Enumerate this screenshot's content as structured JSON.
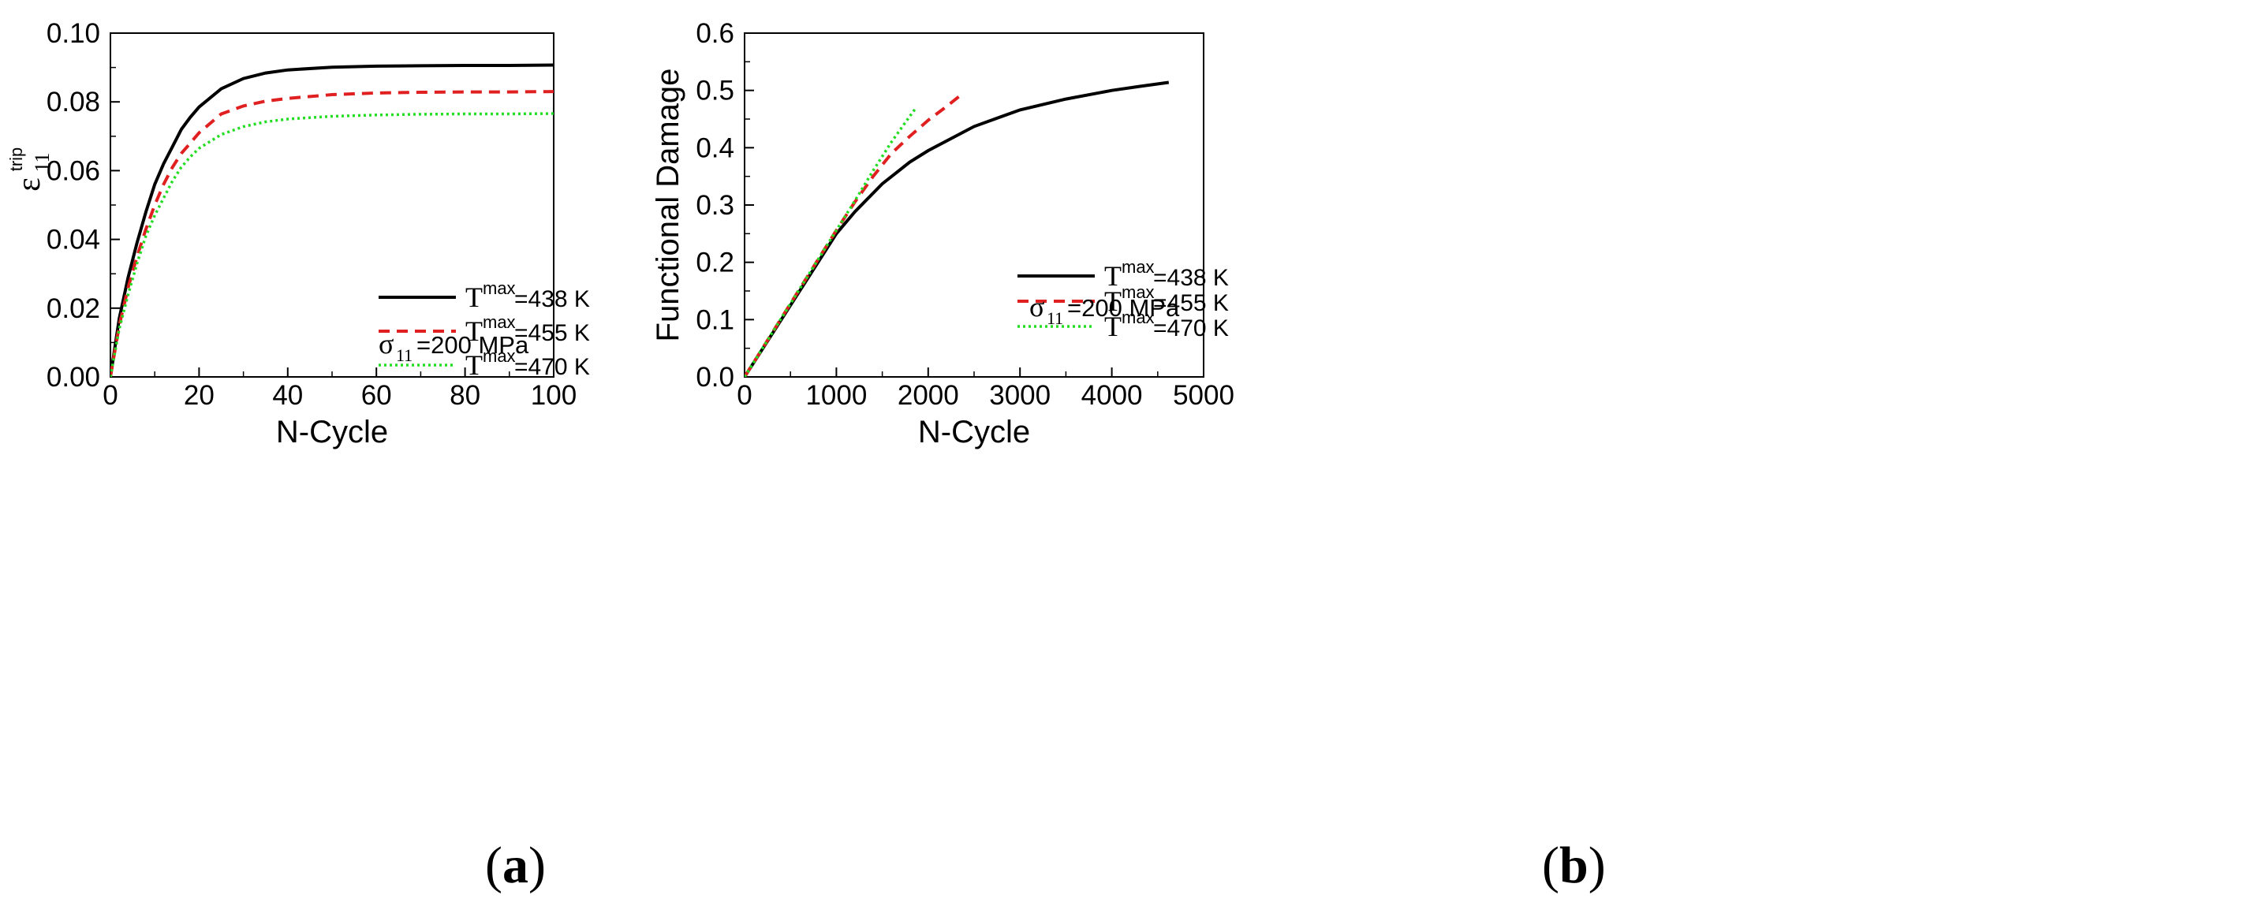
{
  "chart_data": [
    {
      "type": "line",
      "panel": "a",
      "caption_letter": "a",
      "xlabel": "N-Cycle",
      "ylabel_base": "ε",
      "ylabel_sup": "trip",
      "ylabel_sub": "11",
      "xlim": [
        0,
        100
      ],
      "ylim": [
        0,
        0.1
      ],
      "xticks": [
        0,
        20,
        40,
        60,
        80,
        100
      ],
      "xtick_labels": [
        "0",
        "20",
        "40",
        "60",
        "80",
        "100"
      ],
      "yticks": [
        0,
        0.02,
        0.04,
        0.06,
        0.08,
        0.1
      ],
      "ytick_labels": [
        "0.00",
        "0.02",
        "0.04",
        "0.06",
        "0.08",
        "0.10"
      ],
      "annotation": {
        "base": "σ",
        "sub": "11",
        "rest": "=200 MPa"
      },
      "series": [
        {
          "name": "T^max=438 K",
          "label_base": "T",
          "label_sup": "max",
          "label_rest": "=438 K",
          "color": "#000000",
          "dash": "solid",
          "x": [
            0,
            2,
            4,
            6,
            8,
            10,
            12,
            14,
            16,
            18,
            20,
            25,
            30,
            35,
            40,
            50,
            60,
            70,
            80,
            90,
            100
          ],
          "y": [
            0,
            0.017,
            0.029,
            0.039,
            0.048,
            0.056,
            0.062,
            0.067,
            0.072,
            0.0755,
            0.0785,
            0.0838,
            0.0868,
            0.0884,
            0.0893,
            0.0901,
            0.0904,
            0.0905,
            0.0906,
            0.0906,
            0.0907
          ]
        },
        {
          "name": "T^max=455 K",
          "label_base": "T",
          "label_sup": "max",
          "label_rest": "=455 K",
          "color": "#e02020",
          "dash": "dashed",
          "x": [
            0,
            2,
            4,
            6,
            8,
            10,
            12,
            14,
            16,
            18,
            20,
            25,
            30,
            35,
            40,
            50,
            60,
            70,
            80,
            90,
            100
          ],
          "y": [
            0,
            0.015,
            0.026,
            0.035,
            0.043,
            0.05,
            0.056,
            0.061,
            0.065,
            0.068,
            0.071,
            0.0765,
            0.0788,
            0.0802,
            0.081,
            0.0821,
            0.0826,
            0.0828,
            0.0829,
            0.0829,
            0.083
          ]
        },
        {
          "name": "T^max=470 K",
          "label_base": "T",
          "label_sup": "max",
          "label_rest": "=470 K",
          "color": "#22dd22",
          "dash": "dotted",
          "x": [
            0,
            2,
            4,
            6,
            8,
            10,
            12,
            14,
            16,
            18,
            20,
            25,
            30,
            35,
            40,
            50,
            60,
            70,
            80,
            90,
            100
          ],
          "y": [
            0,
            0.014,
            0.024,
            0.033,
            0.041,
            0.047,
            0.052,
            0.057,
            0.061,
            0.064,
            0.0665,
            0.0705,
            0.0728,
            0.0742,
            0.075,
            0.0758,
            0.0762,
            0.0764,
            0.0765,
            0.0765,
            0.0766
          ]
        }
      ]
    },
    {
      "type": "line",
      "panel": "b",
      "caption_letter": "b",
      "xlabel": "N-Cycle",
      "ylabel": "Functional Damage",
      "xlim": [
        0,
        5000
      ],
      "ylim": [
        0,
        0.6
      ],
      "xticks": [
        0,
        1000,
        2000,
        3000,
        4000,
        5000
      ],
      "xtick_labels": [
        "0",
        "1000",
        "2000",
        "3000",
        "4000",
        "5000"
      ],
      "yticks": [
        0,
        0.1,
        0.2,
        0.3,
        0.4,
        0.5,
        0.6
      ],
      "ytick_labels": [
        "0.0",
        "0.1",
        "0.2",
        "0.3",
        "0.4",
        "0.5",
        "0.6"
      ],
      "annotation": {
        "base": "σ",
        "sub": "11",
        "rest": "=200 MPa"
      },
      "series": [
        {
          "name": "T^max=438 K",
          "label_base": "T",
          "label_sup": "max",
          "label_rest": "=438 K",
          "color": "#000000",
          "dash": "solid",
          "x": [
            0,
            500,
            1000,
            1200,
            1500,
            1800,
            2000,
            2500,
            3000,
            3500,
            4000,
            4300,
            4620
          ],
          "y": [
            0,
            0.125,
            0.25,
            0.288,
            0.337,
            0.375,
            0.395,
            0.437,
            0.466,
            0.485,
            0.5,
            0.507,
            0.514
          ]
        },
        {
          "name": "T^max=455 K",
          "label_base": "T",
          "label_sup": "max",
          "label_rest": "=455 K",
          "color": "#e02020",
          "dash": "dashed",
          "x": [
            0,
            500,
            1000,
            1200,
            1400,
            1600,
            1800,
            2000,
            2200,
            2380
          ],
          "y": [
            0,
            0.128,
            0.256,
            0.305,
            0.35,
            0.39,
            0.42,
            0.448,
            0.472,
            0.495
          ]
        },
        {
          "name": "T^max=470 K",
          "label_base": "T",
          "label_sup": "max",
          "label_rest": "=470 K",
          "color": "#22dd22",
          "dash": "dotted",
          "x": [
            0,
            500,
            1000,
            1200,
            1400,
            1600,
            1800,
            1860
          ],
          "y": [
            0,
            0.128,
            0.256,
            0.307,
            0.36,
            0.41,
            0.455,
            0.468
          ]
        }
      ]
    }
  ]
}
